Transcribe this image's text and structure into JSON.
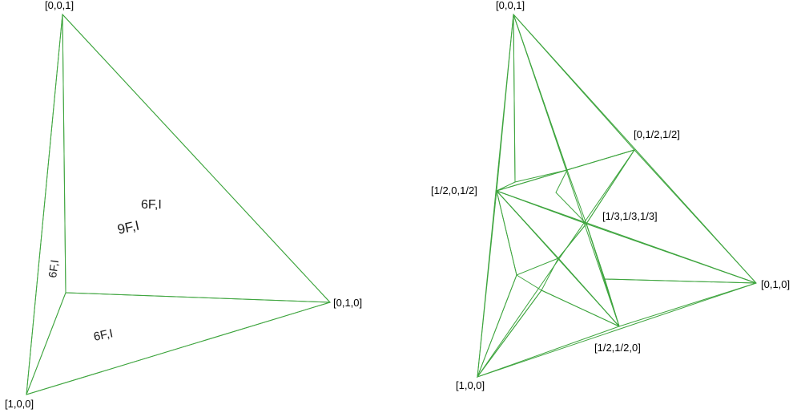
{
  "left_diagram": {
    "vertices": {
      "top": "[0,0,1]",
      "right": "[0,1,0]",
      "bottom": "[1,0,0]"
    },
    "face_labels": {
      "back_upper": "6F,I",
      "center": "9F,I",
      "left_side": "6F,I",
      "bottom": "6F,I"
    }
  },
  "right_diagram": {
    "vertices": {
      "top": "[0,0,1]",
      "right": "[0,1,0]",
      "bottom": "[1,0,0]",
      "edge_top_right": "[0,1/2,1/2]",
      "edge_left": "[1/2,0,1/2]",
      "edge_bottom": "[1/2,1/2,0]",
      "center": "[1/3,1/3,1/3]"
    }
  },
  "colors": {
    "face_dark": "#054d05",
    "face_mid": "#0a6b0a",
    "face_light": "#0c7d0c",
    "face_darkest": "#022e02",
    "edge": "#3fa53f"
  }
}
